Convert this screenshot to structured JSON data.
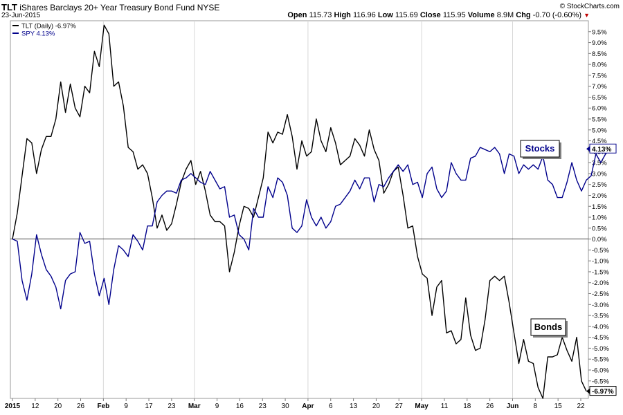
{
  "header": {
    "symbol": "TLT",
    "name": "iShares Barclays 20+ Year Treasury Bond Fund",
    "exchange": "NYSE",
    "date": "23-Jun-2015",
    "stats": [
      {
        "label": "Open",
        "value": "115.73"
      },
      {
        "label": "High",
        "value": "116.96"
      },
      {
        "label": "Low",
        "value": "115.69"
      },
      {
        "label": "Close",
        "value": "115.95"
      },
      {
        "label": "Volume",
        "value": "8.9M"
      },
      {
        "label": "Chg",
        "value": "-0.70 (-0.60%)"
      }
    ],
    "copyright": "© StockCharts.com"
  },
  "chart_data": {
    "type": "line",
    "x_ticks": [
      "2015",
      "12",
      "20",
      "26",
      "Feb",
      "9",
      "17",
      "23",
      "Mar",
      "9",
      "16",
      "23",
      "30",
      "Apr",
      "6",
      "13",
      "20",
      "27",
      "May",
      "11",
      "18",
      "26",
      "Jun",
      "8",
      "15",
      "22"
    ],
    "bold_ticks": [
      "2015",
      "Feb",
      "Mar",
      "Apr",
      "May",
      "Jun"
    ],
    "y_ticks": [
      "9.5%",
      "9.0%",
      "8.5%",
      "8.0%",
      "7.5%",
      "7.0%",
      "6.5%",
      "6.0%",
      "5.5%",
      "5.0%",
      "4.5%",
      "4.0%",
      "3.5%",
      "3.0%",
      "2.5%",
      "2.0%",
      "1.5%",
      "1.0%",
      "0.5%",
      "0.0%",
      "-0.5%",
      "-1.0%",
      "-1.5%",
      "-2.0%",
      "-2.5%",
      "-3.0%",
      "-3.5%",
      "-4.0%",
      "-4.5%",
      "-5.0%",
      "-5.5%",
      "-6.0%",
      "-6.5%"
    ],
    "ylim": [
      -7.3,
      10.0
    ],
    "legend": [
      {
        "label": "TLT (Daily) -6.97%",
        "color": "#000000"
      },
      {
        "label": "SPY 4.13%",
        "color": "#00008b"
      }
    ],
    "series": [
      {
        "name": "TLT",
        "color": "#000000",
        "end_label": "-6.97%",
        "values": [
          0.0,
          1.2,
          2.9,
          4.6,
          4.4,
          3.0,
          4.1,
          4.7,
          4.7,
          5.5,
          7.2,
          5.8,
          7.1,
          6.0,
          5.6,
          7.0,
          6.7,
          8.6,
          7.9,
          9.8,
          9.4,
          7.0,
          7.2,
          6.1,
          4.2,
          4.0,
          3.2,
          3.4,
          3.0,
          1.9,
          0.5,
          1.1,
          0.4,
          0.7,
          1.6,
          2.6,
          3.2,
          3.6,
          2.5,
          3.1,
          2.2,
          1.1,
          0.8,
          0.8,
          0.6,
          -1.5,
          -0.6,
          0.6,
          1.5,
          1.4,
          1.0,
          1.9,
          2.8,
          4.9,
          4.4,
          4.9,
          4.8,
          5.7,
          4.7,
          3.2,
          4.5,
          3.8,
          4.0,
          5.5,
          4.5,
          4.0,
          5.1,
          4.4,
          3.4,
          3.6,
          3.8,
          4.6,
          4.3,
          3.8,
          5.0,
          4.1,
          3.6,
          2.1,
          2.5,
          3.1,
          3.3,
          2.0,
          0.5,
          0.6,
          -0.8,
          -1.6,
          -1.8,
          -3.5,
          -2.2,
          -1.9,
          -4.3,
          -4.2,
          -4.8,
          -4.6,
          -2.7,
          -4.4,
          -5.1,
          -5.0,
          -3.7,
          -1.9,
          -1.7,
          -1.9,
          -1.7,
          -2.9,
          -4.3,
          -5.7,
          -4.6,
          -5.6,
          -5.7,
          -6.8,
          -7.3,
          -5.4,
          -5.4,
          -5.3,
          -4.5,
          -5.1,
          -5.6,
          -4.5,
          -6.5,
          -6.97
        ]
      },
      {
        "name": "SPY",
        "color": "#00008b",
        "end_label": "4.13%",
        "values": [
          0.0,
          -0.1,
          -1.9,
          -2.8,
          -1.6,
          0.2,
          -0.7,
          -1.4,
          -1.7,
          -2.2,
          -3.2,
          -1.9,
          -1.6,
          -1.5,
          0.3,
          -0.2,
          -0.1,
          -1.6,
          -2.6,
          -1.8,
          -3.0,
          -1.4,
          -0.3,
          -0.5,
          -0.8,
          0.2,
          -0.1,
          -0.5,
          0.6,
          0.6,
          1.7,
          2.0,
          2.2,
          2.2,
          2.1,
          2.7,
          2.8,
          3.0,
          2.8,
          2.6,
          2.5,
          3.1,
          2.7,
          2.3,
          2.4,
          1.0,
          1.1,
          0.2,
          0.0,
          -0.5,
          1.4,
          1.0,
          1.0,
          2.4,
          1.9,
          2.8,
          2.6,
          2.0,
          0.5,
          0.3,
          0.6,
          1.8,
          1.0,
          0.6,
          1.0,
          0.5,
          0.8,
          1.5,
          1.6,
          1.9,
          2.2,
          2.7,
          2.3,
          2.8,
          2.8,
          1.7,
          2.5,
          2.4,
          2.8,
          3.1,
          3.4,
          3.1,
          3.4,
          2.5,
          2.6,
          1.9,
          3.0,
          3.3,
          2.3,
          1.9,
          2.2,
          3.5,
          3.0,
          2.7,
          2.7,
          3.7,
          3.8,
          4.2,
          4.1,
          4.0,
          4.2,
          3.9,
          3.0,
          3.9,
          3.8,
          3.0,
          3.4,
          3.2,
          3.4,
          3.2,
          3.8,
          2.7,
          2.5,
          1.9,
          1.9,
          2.6,
          3.5,
          2.7,
          2.2,
          2.7,
          2.9,
          3.9,
          3.5,
          3.9,
          4.13
        ]
      }
    ],
    "annotations": [
      {
        "text": "Stocks",
        "color": "#00008b",
        "anchor": "SPY"
      },
      {
        "text": "Bonds",
        "color": "#000000",
        "anchor": "TLT"
      }
    ]
  }
}
